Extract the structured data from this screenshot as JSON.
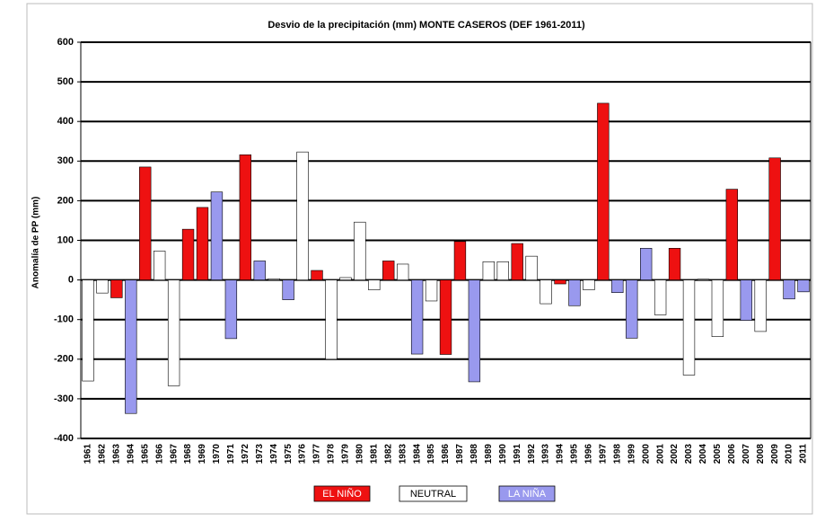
{
  "chart_data": {
    "type": "bar",
    "title": "Desvio de la precipitación (mm) MONTE CASEROS (DEF 1961-2011)",
    "y_label": "Anomalía de PP (mm)",
    "categories": [
      "1961",
      "1962",
      "1963",
      "1964",
      "1965",
      "1966",
      "1967",
      "1968",
      "1969",
      "1970",
      "1971",
      "1972",
      "1973",
      "1974",
      "1975",
      "1976",
      "1977",
      "1978",
      "1979",
      "1980",
      "1981",
      "1982",
      "1983",
      "1984",
      "1985",
      "1986",
      "1987",
      "1988",
      "1989",
      "1990",
      "1991",
      "1992",
      "1993",
      "1994",
      "1995",
      "1996",
      "1997",
      "1998",
      "1999",
      "2000",
      "2001",
      "2002",
      "2003",
      "2004",
      "2005",
      "2006",
      "2007",
      "2008",
      "2009",
      "2010",
      "2011"
    ],
    "series": [
      {
        "name": "EL NIÑO",
        "color": "#ee1111",
        "values": [
          null,
          null,
          -45,
          null,
          285,
          null,
          null,
          128,
          183,
          null,
          null,
          316,
          null,
          null,
          null,
          null,
          24,
          null,
          null,
          null,
          null,
          48,
          null,
          null,
          null,
          -188,
          97,
          null,
          null,
          null,
          92,
          null,
          null,
          -10,
          null,
          null,
          446,
          null,
          null,
          null,
          null,
          80,
          null,
          null,
          null,
          229,
          null,
          null,
          308,
          null,
          null
        ]
      },
      {
        "name": "NEUTRAL",
        "color": "#ffffff",
        "values": [
          -255,
          -33,
          null,
          null,
          null,
          73,
          -267,
          null,
          null,
          null,
          null,
          null,
          null,
          3,
          null,
          323,
          null,
          -200,
          6,
          146,
          -25,
          null,
          40,
          null,
          -53,
          null,
          null,
          null,
          46,
          46,
          null,
          60,
          -60,
          null,
          null,
          -25,
          null,
          null,
          null,
          null,
          -88,
          null,
          -240,
          2,
          -143,
          null,
          null,
          -130,
          null,
          null,
          null
        ]
      },
      {
        "name": "LA NIÑA",
        "color": "#9999ee",
        "values": [
          null,
          null,
          null,
          -337,
          null,
          null,
          null,
          null,
          null,
          222,
          -148,
          null,
          48,
          null,
          -50,
          null,
          null,
          null,
          null,
          null,
          null,
          null,
          null,
          -187,
          null,
          null,
          null,
          -257,
          null,
          null,
          null,
          null,
          null,
          null,
          -65,
          null,
          null,
          -32,
          -147,
          80,
          null,
          null,
          null,
          null,
          null,
          null,
          -102,
          null,
          null,
          -48,
          -30
        ]
      }
    ],
    "ylim": [
      -400,
      600
    ],
    "yticks": [
      -400,
      -300,
      -200,
      -100,
      0,
      100,
      200,
      300,
      400,
      500,
      600
    ],
    "grid": true
  }
}
